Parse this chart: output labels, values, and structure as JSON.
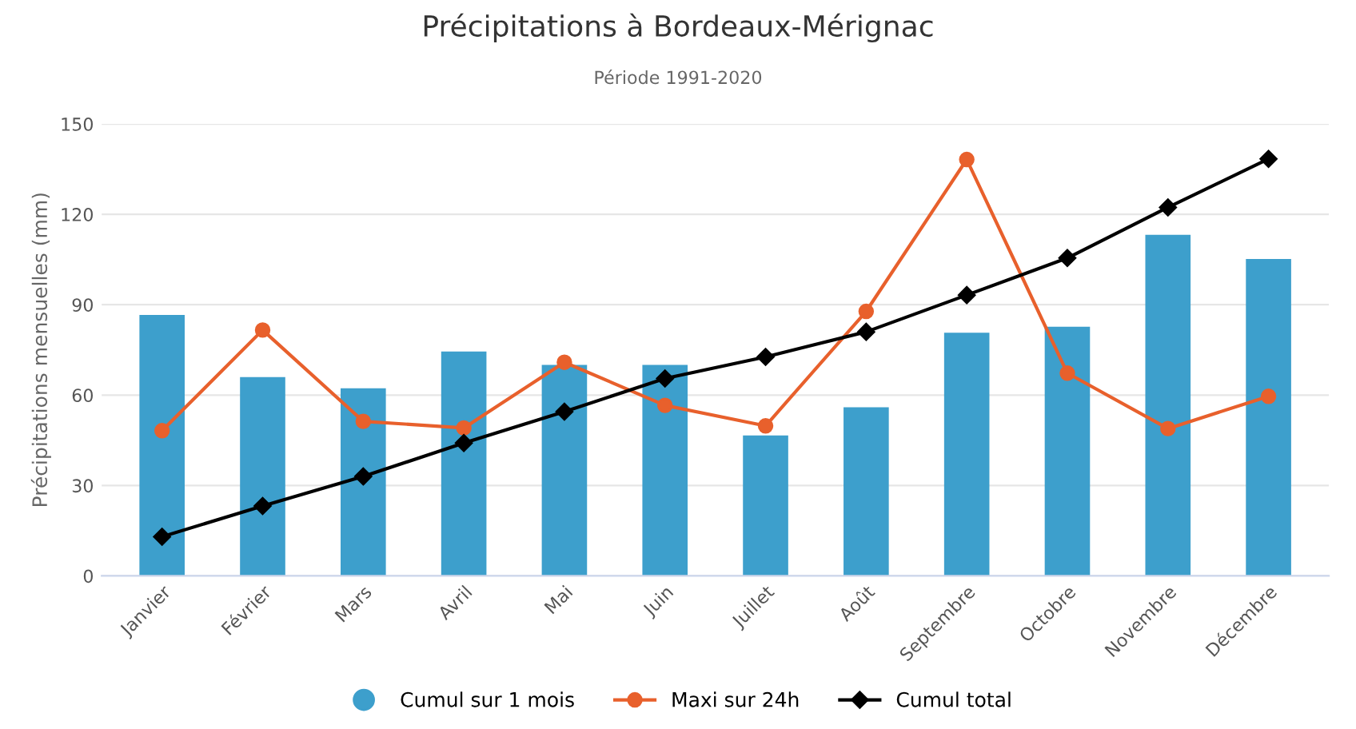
{
  "chart_data": {
    "type": "bar",
    "title": "Précipitations à Bordeaux-Mérignac",
    "subtitle": "Période 1991-2020",
    "ylabel": "Précipitations mensuelles (mm)",
    "categories": [
      "Janvier",
      "Février",
      "Mars",
      "Avril",
      "Mai",
      "Juin",
      "Juillet",
      "Août",
      "Septembre",
      "Octobre",
      "Novembre",
      "Décembre"
    ],
    "series": [
      {
        "name": "Cumul sur 1 mois",
        "color": "#3d9fcc",
        "values": [
          86.6,
          66,
          62.3,
          74.5,
          70,
          70,
          46.6,
          56,
          80.7,
          82.7,
          113.2,
          105.2
        ]
      },
      {
        "name": "Maxi sur 24h",
        "type": "line",
        "color": "#e8602c",
        "marker": "circle",
        "values": [
          48.2,
          81.6,
          51.3,
          49.1,
          70.9,
          56.6,
          49.8,
          87.8,
          138.2,
          67.3,
          48.9,
          59.6
        ]
      },
      {
        "name": "Cumul total",
        "type": "line",
        "color": "#000000",
        "marker": "diamond",
        "values": [
          13,
          23.2,
          33,
          44.1,
          54.5,
          65.5,
          72.7,
          81,
          93.2,
          105.5,
          122.3,
          138.4
        ]
      }
    ],
    "ylim": [
      0,
      150
    ],
    "yticks": [
      0,
      30,
      60,
      90,
      120,
      150
    ],
    "grid": "y",
    "legend": "bottom"
  }
}
